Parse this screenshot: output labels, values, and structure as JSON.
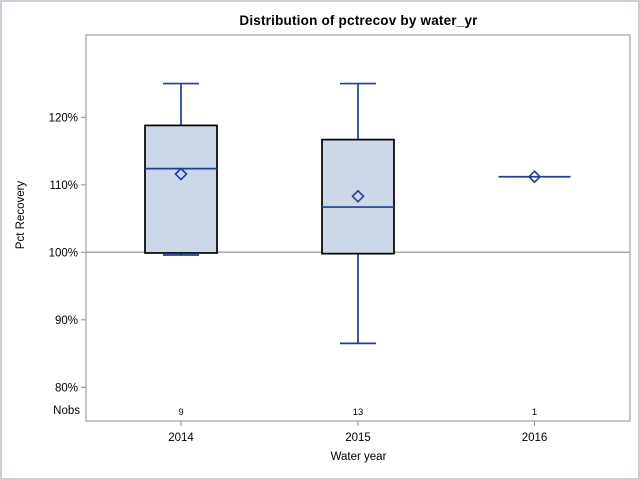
{
  "chart_data": {
    "type": "boxplot",
    "title": "Distribution of pctrecov by water_yr",
    "xlabel": "Water year",
    "ylabel": "Pct Recovery",
    "nobs_label": "Nobs",
    "categories": [
      "2014",
      "2015",
      "2016"
    ],
    "nobs": [
      9,
      13,
      1
    ],
    "yticks": [
      120,
      110,
      100,
      90,
      80
    ],
    "ytick_suffix": "%",
    "ylim": [
      75,
      132.2
    ],
    "refline_y": 100,
    "grid": false,
    "legend": "none",
    "series": [
      {
        "category": "2014",
        "n": 9,
        "min": 99.6,
        "q1": 99.9,
        "median": 112.4,
        "mean": 111.6,
        "q3": 118.8,
        "max": 125.0
      },
      {
        "category": "2015",
        "n": 13,
        "min": 86.5,
        "q1": 99.8,
        "median": 106.7,
        "mean": 108.3,
        "q3": 116.7,
        "max": 125.0
      },
      {
        "category": "2016",
        "n": 1,
        "min": 111.2,
        "q1": 111.2,
        "median": 111.2,
        "mean": 111.2,
        "q3": 111.2,
        "max": 111.2
      }
    ],
    "colors": {
      "box_fill": "#ccd7e8",
      "box_border": "#000000",
      "line": "#1f3d99",
      "frame": "#8f8f8f",
      "refline": "#a6a6a6",
      "text": "#000000"
    }
  }
}
